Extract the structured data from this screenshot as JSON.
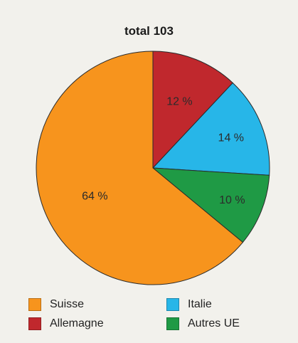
{
  "chart_data": {
    "type": "pie",
    "title": "total 103",
    "categories": [
      "Suisse",
      "Allemagne",
      "Italie",
      "Autres UE"
    ],
    "values": [
      64,
      12,
      14,
      10
    ],
    "labels": [
      "64 %",
      "12 %",
      "14 %",
      "10 %"
    ],
    "colors": [
      "#f7941d",
      "#c0282d",
      "#27b6e8",
      "#1f9a45"
    ],
    "legend_placement": "bottom"
  }
}
